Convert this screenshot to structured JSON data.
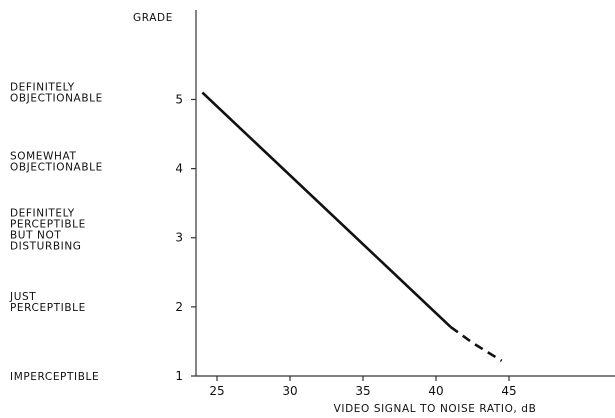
{
  "chart_data": {
    "type": "line",
    "title": "",
    "ylabel": "GRADE",
    "xlabel": "VIDEO SIGNAL TO NOISE RATIO, dB",
    "xlim": [
      24,
      45
    ],
    "ylim": [
      1,
      6
    ],
    "x_ticks": [
      25,
      30,
      35,
      40,
      45
    ],
    "y_ticks": [
      1,
      2,
      3,
      4,
      5
    ],
    "grade_descriptions": [
      {
        "grade": 5,
        "lines": [
          "DEFINITELY",
          "OBJECTIONABLE"
        ]
      },
      {
        "grade": 4,
        "lines": [
          "SOMEWHAT",
          "OBJECTIONABLE"
        ]
      },
      {
        "grade": 3,
        "lines": [
          "DEFINITELY",
          "PERCEPTIBLE",
          "BUT NOT",
          "DISTURBING"
        ]
      },
      {
        "grade": 2,
        "lines": [
          "JUST",
          "PERCEPTIBLE"
        ]
      },
      {
        "grade": 1,
        "lines": [
          "IMPERCEPTIBLE"
        ]
      }
    ],
    "series": [
      {
        "style": "solid",
        "points": [
          [
            24,
            5.1
          ],
          [
            41,
            1.71
          ]
        ]
      },
      {
        "style": "dashed",
        "points": [
          [
            41,
            1.71
          ],
          [
            42.5,
            1.48
          ],
          [
            44.5,
            1.22
          ]
        ]
      }
    ],
    "grid": false,
    "colors": {
      "line": "#111111",
      "axis": "#333333"
    }
  }
}
